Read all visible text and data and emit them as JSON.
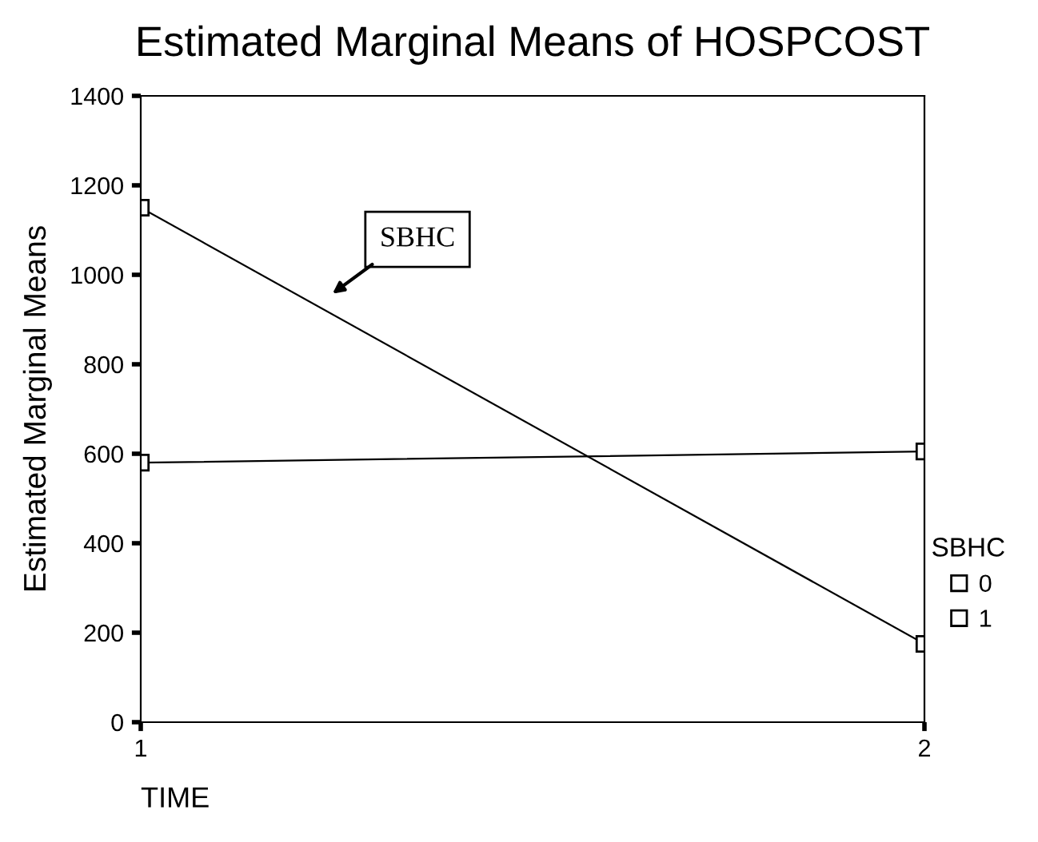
{
  "chart_data": {
    "type": "line",
    "title": "Estimated Marginal Means of HOSPCOST",
    "xlabel": "TIME",
    "ylabel": "Estimated Marginal Means",
    "legend_title": "SBHC",
    "x": [
      1,
      2
    ],
    "series": [
      {
        "name": "0",
        "color": "#000000",
        "values": [
          580,
          605
        ]
      },
      {
        "name": "1",
        "color": "#000000",
        "values": [
          1150,
          175
        ]
      }
    ],
    "xlim": [
      1,
      2
    ],
    "xticks": [
      1,
      2
    ],
    "ylim": [
      0,
      1400
    ],
    "yticks": [
      0,
      200,
      400,
      600,
      800,
      1000,
      1200,
      1400
    ],
    "marker": "square",
    "line_style": "solid",
    "grid": false,
    "legend": "right",
    "annotations": [
      "SBHC"
    ]
  }
}
